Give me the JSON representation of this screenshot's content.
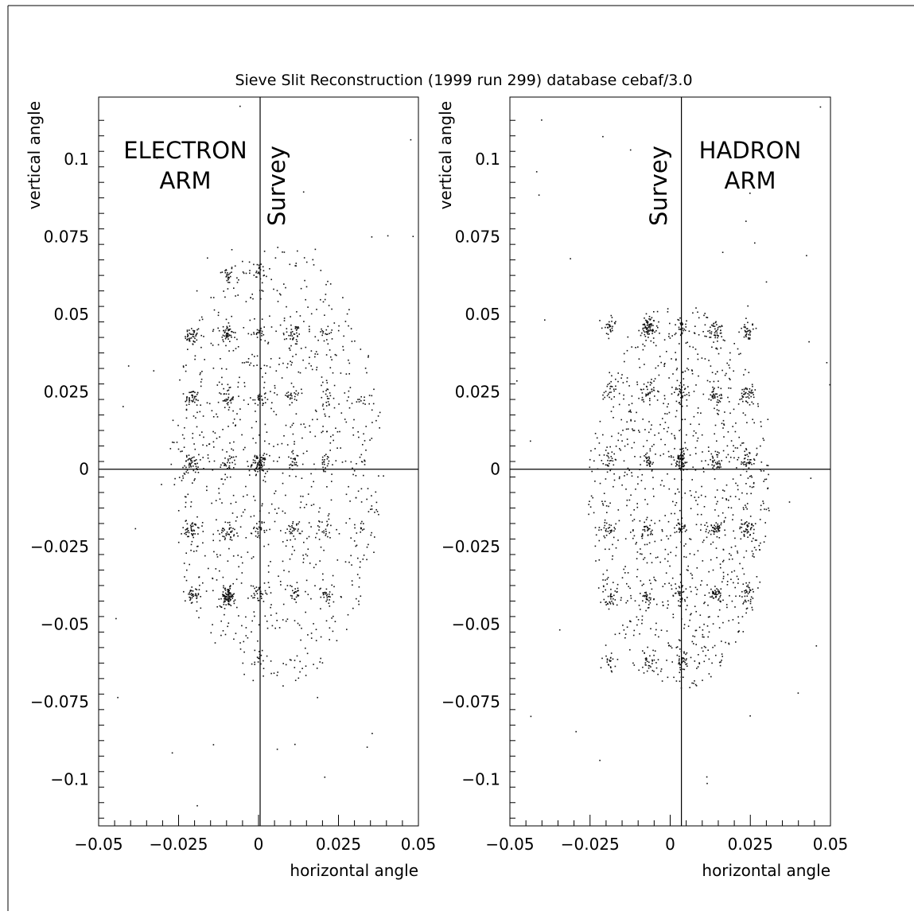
{
  "title": "Sieve Slit Reconstruction (1999 run 299) database cebaf/3.0",
  "chart_data": [
    {
      "type": "scatter",
      "panel": "left",
      "arm_label_lines": [
        "ELECTRON",
        "ARM"
      ],
      "survey_label": "Survey",
      "xlabel": "horizontal angle",
      "ylabel": "vertical angle",
      "xlim": [
        -0.05,
        0.05
      ],
      "ylim": [
        -0.115,
        0.12
      ],
      "x_ticks": [
        "-0.05",
        "-0.025",
        "0",
        "0.025",
        "0.05"
      ],
      "y_ticks": [
        "0.1",
        "0.075",
        "0.05",
        "0.025",
        "0",
        "-0.025",
        "-0.05",
        "-0.075",
        "-0.1"
      ],
      "survey_x": 0.0005,
      "zero_line_y": 0,
      "grid": false,
      "sieve_holes_x": [
        -0.021,
        -0.01,
        0.0,
        0.011,
        0.021,
        0.032
      ],
      "sieve_holes_y": [
        0.063,
        0.043,
        0.023,
        0.002,
        -0.019,
        -0.04,
        -0.061
      ],
      "clusters": [
        {
          "x": -0.01,
          "y": 0.063,
          "n": 25
        },
        {
          "x": 0.0,
          "y": 0.064,
          "n": 14
        },
        {
          "x": -0.021,
          "y": 0.043,
          "n": 40
        },
        {
          "x": -0.01,
          "y": 0.044,
          "n": 42
        },
        {
          "x": 0.0,
          "y": 0.044,
          "n": 16
        },
        {
          "x": 0.011,
          "y": 0.044,
          "n": 28
        },
        {
          "x": 0.021,
          "y": 0.044,
          "n": 14
        },
        {
          "x": -0.021,
          "y": 0.023,
          "n": 40
        },
        {
          "x": -0.01,
          "y": 0.023,
          "n": 32
        },
        {
          "x": 0.0,
          "y": 0.023,
          "n": 24
        },
        {
          "x": 0.011,
          "y": 0.024,
          "n": 22
        },
        {
          "x": 0.021,
          "y": 0.023,
          "n": 18
        },
        {
          "x": 0.032,
          "y": 0.023,
          "n": 8
        },
        {
          "x": -0.021,
          "y": 0.002,
          "n": 44
        },
        {
          "x": -0.01,
          "y": 0.002,
          "n": 22
        },
        {
          "x": 0.0,
          "y": 0.002,
          "n": 70
        },
        {
          "x": 0.011,
          "y": 0.003,
          "n": 22
        },
        {
          "x": 0.021,
          "y": 0.002,
          "n": 18
        },
        {
          "x": 0.032,
          "y": 0.003,
          "n": 8
        },
        {
          "x": -0.021,
          "y": -0.019,
          "n": 42
        },
        {
          "x": -0.01,
          "y": -0.02,
          "n": 34
        },
        {
          "x": 0.0,
          "y": -0.019,
          "n": 24
        },
        {
          "x": 0.011,
          "y": -0.019,
          "n": 30
        },
        {
          "x": 0.021,
          "y": -0.019,
          "n": 20
        },
        {
          "x": 0.032,
          "y": -0.019,
          "n": 10
        },
        {
          "x": -0.021,
          "y": -0.041,
          "n": 36
        },
        {
          "x": -0.01,
          "y": -0.041,
          "n": 90
        },
        {
          "x": 0.0,
          "y": -0.04,
          "n": 24
        },
        {
          "x": 0.011,
          "y": -0.04,
          "n": 24
        },
        {
          "x": 0.021,
          "y": -0.04,
          "n": 22
        },
        {
          "x": 0.0,
          "y": -0.061,
          "n": 14
        }
      ],
      "background_points": 900,
      "outlier_points": 45
    },
    {
      "type": "scatter",
      "panel": "right",
      "arm_label_lines": [
        "HADRON",
        "ARM"
      ],
      "survey_label": "Survey",
      "xlabel": "horizontal angle",
      "ylabel": "vertical angle",
      "xlim": [
        -0.05,
        0.05
      ],
      "ylim": [
        -0.115,
        0.12
      ],
      "x_ticks": [
        "-0.05",
        "-0.025",
        "0",
        "0.025",
        "0.05"
      ],
      "y_ticks": [
        "0.1",
        "0.075",
        "0.05",
        "0.025",
        "0",
        "-0.025",
        "-0.05",
        "-0.075",
        "-0.1"
      ],
      "survey_x": 0.0035,
      "zero_line_y": 0,
      "grid": false,
      "sieve_holes_x": [
        -0.019,
        -0.007,
        0.003,
        0.014,
        0.024
      ],
      "sieve_holes_y": [
        0.045,
        0.024,
        0.003,
        -0.019,
        -0.041,
        -0.062
      ],
      "clusters": [
        {
          "x": -0.019,
          "y": 0.046,
          "n": 28
        },
        {
          "x": -0.007,
          "y": 0.046,
          "n": 70
        },
        {
          "x": 0.003,
          "y": 0.046,
          "n": 26
        },
        {
          "x": 0.014,
          "y": 0.045,
          "n": 36
        },
        {
          "x": 0.024,
          "y": 0.045,
          "n": 36
        },
        {
          "x": -0.019,
          "y": 0.025,
          "n": 22
        },
        {
          "x": -0.007,
          "y": 0.025,
          "n": 26
        },
        {
          "x": 0.003,
          "y": 0.025,
          "n": 30
        },
        {
          "x": 0.014,
          "y": 0.024,
          "n": 34
        },
        {
          "x": 0.024,
          "y": 0.024,
          "n": 40
        },
        {
          "x": -0.019,
          "y": 0.003,
          "n": 22
        },
        {
          "x": -0.007,
          "y": 0.003,
          "n": 26
        },
        {
          "x": 0.003,
          "y": 0.003,
          "n": 70
        },
        {
          "x": 0.014,
          "y": 0.003,
          "n": 36
        },
        {
          "x": 0.024,
          "y": 0.003,
          "n": 34
        },
        {
          "x": -0.019,
          "y": -0.019,
          "n": 26
        },
        {
          "x": -0.007,
          "y": -0.019,
          "n": 26
        },
        {
          "x": 0.003,
          "y": -0.019,
          "n": 26
        },
        {
          "x": 0.014,
          "y": -0.019,
          "n": 44
        },
        {
          "x": 0.024,
          "y": -0.019,
          "n": 40
        },
        {
          "x": -0.019,
          "y": -0.041,
          "n": 24
        },
        {
          "x": -0.007,
          "y": -0.041,
          "n": 26
        },
        {
          "x": 0.003,
          "y": -0.04,
          "n": 28
        },
        {
          "x": 0.014,
          "y": -0.04,
          "n": 40
        },
        {
          "x": 0.024,
          "y": -0.04,
          "n": 30
        },
        {
          "x": -0.019,
          "y": -0.062,
          "n": 22
        },
        {
          "x": -0.007,
          "y": -0.062,
          "n": 24
        },
        {
          "x": 0.003,
          "y": -0.062,
          "n": 24
        }
      ],
      "background_points": 1000,
      "outlier_points": 40
    }
  ]
}
